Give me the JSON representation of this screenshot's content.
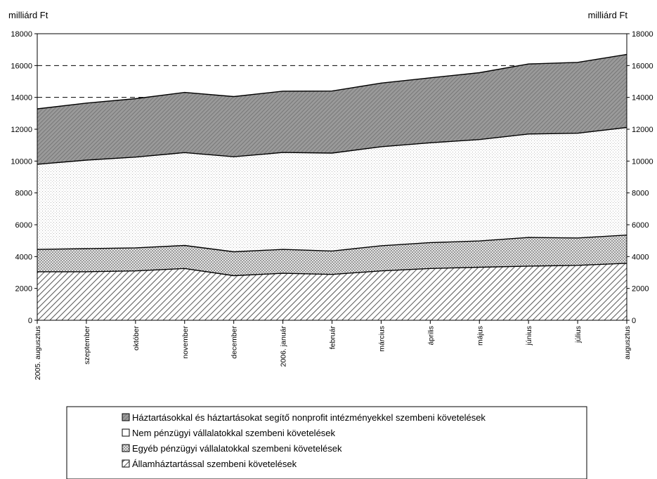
{
  "chart_data": {
    "type": "area",
    "stacked": true,
    "ylabel_left": "milliárd Ft",
    "ylabel_right": "milliárd Ft",
    "ylim": [
      0,
      18000
    ],
    "yticks": [
      "0",
      "2000",
      "4000",
      "6000",
      "8000",
      "10000",
      "12000",
      "14000",
      "16000",
      "18000"
    ],
    "grid": "dashed horizontal at top gridlines",
    "legend_position": "bottom",
    "categories": [
      "2005. augusztus",
      "szeptember",
      "október",
      "november",
      "december",
      "2006. január",
      "február",
      "március",
      "április",
      "május",
      "június",
      "július",
      "augusztus"
    ],
    "series": [
      {
        "name": "Államháztartással szembeni követelések",
        "pattern": "diagonal-hatch",
        "values": [
          3050,
          3050,
          3100,
          3250,
          2800,
          2950,
          2880,
          3100,
          3250,
          3330,
          3400,
          3450,
          3580
        ]
      },
      {
        "name": "Egyéb pénzügyi vállalatokkal szembeni követelések",
        "pattern": "checker",
        "values": [
          1400,
          1450,
          1450,
          1450,
          1500,
          1500,
          1470,
          1580,
          1630,
          1650,
          1800,
          1720,
          1770
        ]
      },
      {
        "name": "Nem pénzügyi vállalatokkal szembeni követelések",
        "pattern": "light-dots",
        "values": [
          5350,
          5560,
          5700,
          5830,
          5970,
          6090,
          6150,
          6220,
          6270,
          6370,
          6500,
          6580,
          6760
        ]
      },
      {
        "name": "Háztartásokkal és háztartásokat segítő nonprofit intézményekkel szembeni követelések",
        "pattern": "dense-dark",
        "values": [
          3480,
          3580,
          3670,
          3780,
          3780,
          3850,
          3900,
          4000,
          4080,
          4200,
          4400,
          4450,
          4590
        ]
      }
    ]
  }
}
